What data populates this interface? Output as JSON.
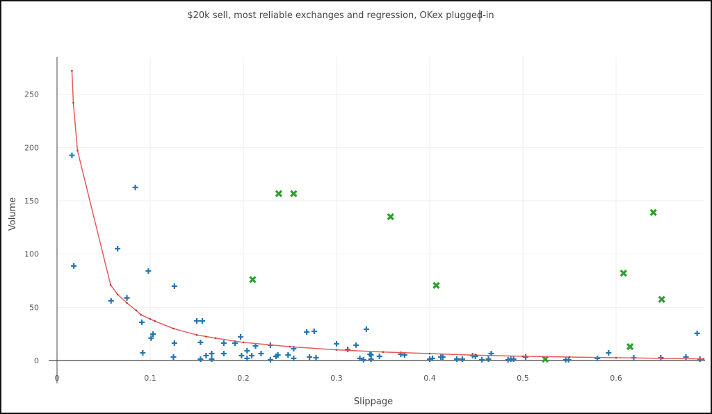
{
  "chart_data": {
    "type": "scatter",
    "title": "$20k sell, most reliable exchanges and regression, OKex plugged-in",
    "xlabel": "Slippage",
    "ylabel": "Volume",
    "xlim": [
      0,
      0.694
    ],
    "ylim": [
      0,
      285
    ],
    "grid": true,
    "x_ticks": [
      0,
      0.1,
      0.2,
      0.3,
      0.4,
      0.5,
      0.6
    ],
    "x_tick_labels": [
      "0",
      "0.1",
      "0.2",
      "0.3",
      "0.4",
      "0.5",
      "0.6"
    ],
    "y_ticks": [
      0,
      50,
      100,
      150,
      200,
      250
    ],
    "y_tick_labels": [
      "0",
      "50",
      "100",
      "150",
      "200",
      "250"
    ],
    "colors": {
      "blue": "#1f77b4",
      "green": "#2ca02c",
      "regression": "#e8585c"
    },
    "series": [
      {
        "name": "exchanges",
        "marker": "cross",
        "color": "#1f77b4",
        "x": [
          0.016,
          0.018,
          0.058,
          0.065,
          0.075,
          0.084,
          0.091,
          0.092,
          0.098,
          0.101,
          0.103,
          0.126,
          0.126,
          0.125,
          0.15,
          0.156,
          0.154,
          0.154,
          0.16,
          0.166,
          0.166,
          0.179,
          0.179,
          0.191,
          0.197,
          0.204,
          0.198,
          0.204,
          0.209,
          0.213,
          0.219,
          0.229,
          0.229,
          0.235,
          0.237,
          0.248,
          0.254,
          0.254,
          0.268,
          0.276,
          0.271,
          0.278,
          0.3,
          0.312,
          0.321,
          0.332,
          0.325,
          0.329,
          0.336,
          0.337,
          0.337,
          0.346,
          0.369,
          0.373,
          0.4,
          0.403,
          0.412,
          0.414,
          0.429,
          0.435,
          0.446,
          0.449,
          0.456,
          0.463,
          0.466,
          0.484,
          0.487,
          0.49,
          0.503,
          0.546,
          0.549,
          0.58,
          0.592,
          0.619,
          0.648,
          0.675,
          0.687,
          0.69
        ],
        "y": [
          192.6,
          88.8,
          56,
          105,
          58.7,
          162.5,
          35.9,
          7.2,
          84,
          21,
          24.8,
          69.8,
          16.3,
          3.3,
          37.2,
          37.2,
          17,
          1.3,
          4.6,
          1.3,
          6.5,
          16.3,
          6.5,
          16.3,
          22.2,
          9.1,
          4.6,
          2.0,
          4.6,
          13.7,
          6.5,
          14.4,
          0.7,
          3.9,
          5.2,
          5.2,
          11.1,
          2.0,
          26.8,
          27.4,
          3.3,
          2.6,
          15.7,
          10.4,
          14.4,
          29.4,
          2.0,
          0.7,
          5.9,
          5.2,
          1.3,
          3.9,
          5.9,
          5.2,
          1.3,
          2.0,
          3.3,
          3.3,
          1.3,
          1.3,
          4.6,
          3.9,
          0.7,
          1.3,
          6.5,
          0.7,
          1.3,
          1.3,
          3.3,
          0.7,
          0.7,
          2.0,
          7.2,
          2.6,
          2.6,
          3.3,
          25.5,
          1.3
        ]
      },
      {
        "name": "OKex",
        "marker": "x",
        "color": "#2ca02c",
        "x": [
          0.21,
          0.238,
          0.254,
          0.358,
          0.407,
          0.524,
          0.608,
          0.615,
          0.64,
          0.649
        ],
        "y": [
          76,
          156.7,
          156.7,
          135,
          70.5,
          1.3,
          82,
          13,
          139,
          57.4
        ]
      },
      {
        "name": "regression",
        "marker": "line",
        "color": "#e8585c",
        "x": [
          0.016,
          0.0175,
          0.022,
          0.0575,
          0.065,
          0.075,
          0.085,
          0.09,
          0.1,
          0.105,
          0.125,
          0.15,
          0.16,
          0.17,
          0.2,
          0.25,
          0.3,
          0.35,
          0.4,
          0.45,
          0.5,
          0.55,
          0.6,
          0.65,
          0.694
        ],
        "y": [
          272,
          242,
          197,
          71,
          62,
          54,
          47,
          43,
          39,
          37,
          30,
          24,
          22.5,
          21,
          17,
          13,
          10,
          8,
          6.5,
          5,
          4,
          3.3,
          2.6,
          2,
          1.5
        ]
      }
    ]
  }
}
